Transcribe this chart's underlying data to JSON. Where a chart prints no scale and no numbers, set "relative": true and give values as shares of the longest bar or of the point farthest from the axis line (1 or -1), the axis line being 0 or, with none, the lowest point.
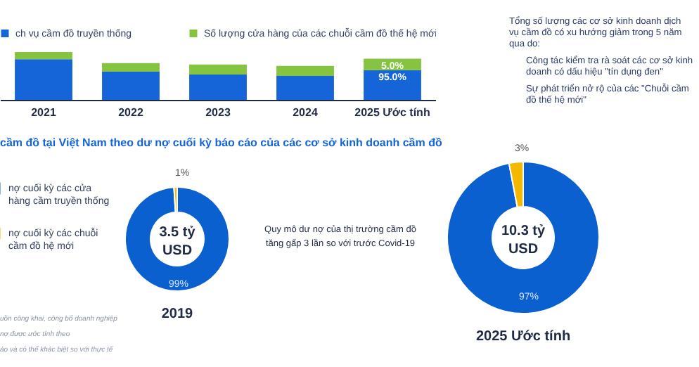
{
  "chart_data": [
    {
      "type": "bar",
      "stacked": true,
      "relative": true,
      "legend": "top",
      "categories": [
        "2021",
        "2022",
        "2023",
        "2024",
        "2025 Ước tính"
      ],
      "series": [
        {
          "name": "ch vụ cầm đồ truyền thống",
          "color": "#1565d8",
          "values": [
            0.85,
            0.59,
            0.53,
            0.5,
            0.62
          ]
        },
        {
          "name": "Số lượng cửa hàng của các chuỗi cầm đồ thế hệ mới",
          "color": "#84c441",
          "values": [
            0.15,
            0.18,
            0.21,
            0.21,
            0.24
          ]
        }
      ],
      "annotations": [
        {
          "text": "5.0%",
          "x": "2025 Ước tính",
          "y": 0.86
        },
        {
          "text": "95.0%",
          "x": "2025 Ước tính",
          "y": 0.62
        }
      ]
    },
    {
      "type": "donut",
      "title": "cầm đồ tại Việt Nam theo dư nợ cuối kỳ báo cáo của các cơ sở kinh doanh cầm đồ",
      "legend": "left",
      "categories": [
        "nợ cuối kỳ các cửa hàng cầm truyền thống",
        "nợ cuối kỳ các chuỗi cầm đồ hệ mới"
      ],
      "values": [
        99,
        1
      ],
      "colors": [
        "#0b60cf",
        "#f5b800"
      ],
      "value_labels": [
        "99%",
        "1%"
      ],
      "annotations": [
        "3.5 tỷ USD",
        "2019",
        "uồn công khai, công bố doanh nghiệp",
        "nợ được ước tính theo",
        "áo và có thể khác biệt so với thực tế"
      ]
    },
    {
      "type": "donut",
      "categories": [
        null,
        null
      ],
      "values": [
        97,
        3
      ],
      "colors": [
        "#0b60cf",
        "#f5b800"
      ],
      "value_labels": [
        "97%",
        "3%"
      ],
      "annotations": [
        "10.3 tỷ USD",
        "2025 Ước tính",
        "Quy mô dư nợ của thị trường cầm đồ tăng gấp 3 lần so với trước Covid-19"
      ]
    },
    {
      "type": "other",
      "annotations": [
        "Tổng số lượng các cơ sở kinh doanh dịch vụ cầm đồ có xu hướng giảm trong 5 năm qua do:",
        "Công tác kiểm tra rà soát các cơ sở kinh doanh có dấu hiệu \"tín dụng đen\"",
        "Sự phát triển nở rộ của các \"Chuỗi cầm đồ thế hệ mới\""
      ]
    }
  ]
}
